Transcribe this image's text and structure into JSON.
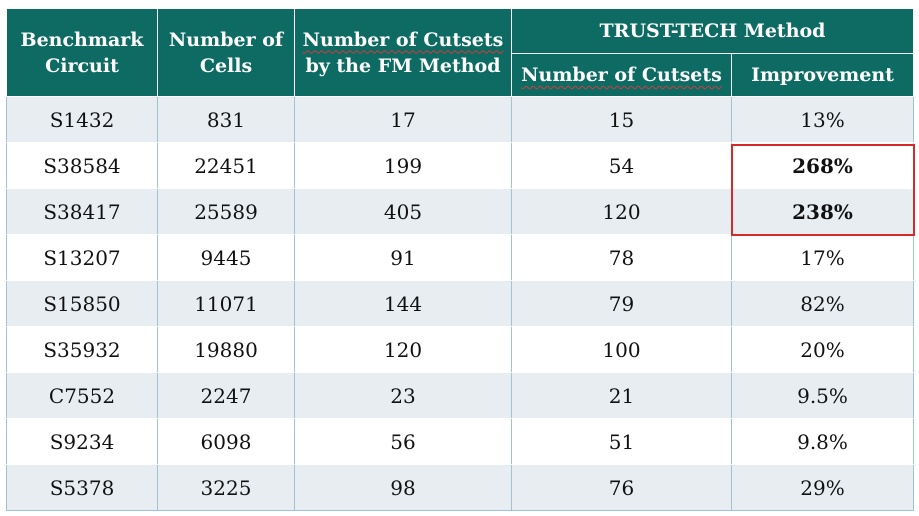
{
  "header": {
    "benchmark_circuit": "Benchmark Circuit",
    "number_of_cells": "Number of Cells",
    "cutsets_fm_line1": "Number of Cutsets",
    "cutsets_fm_line2": "by the FM Method",
    "trust_tech": "TRUST-TECH Method",
    "number_of_cutsets": "Number of Cutsets",
    "improvement": "Improvement"
  },
  "rows": [
    {
      "circuit": "S1432",
      "cells": "831",
      "fm": "17",
      "tt": "15",
      "improvement": "13%",
      "bold": false
    },
    {
      "circuit": "S38584",
      "cells": "22451",
      "fm": "199",
      "tt": "54",
      "improvement": "268%",
      "bold": true
    },
    {
      "circuit": "S38417",
      "cells": "25589",
      "fm": "405",
      "tt": "120",
      "improvement": "238%",
      "bold": true
    },
    {
      "circuit": "S13207",
      "cells": "9445",
      "fm": "91",
      "tt": "78",
      "improvement": "17%",
      "bold": false
    },
    {
      "circuit": "S15850",
      "cells": "11071",
      "fm": "144",
      "tt": "79",
      "improvement": "82%",
      "bold": false
    },
    {
      "circuit": "S35932",
      "cells": "19880",
      "fm": "120",
      "tt": "100",
      "improvement": "20%",
      "bold": false
    },
    {
      "circuit": "C7552",
      "cells": "2247",
      "fm": "23",
      "tt": "21",
      "improvement": "9.5%",
      "bold": false
    },
    {
      "circuit": "S9234",
      "cells": "6098",
      "fm": "56",
      "tt": "51",
      "improvement": "9.8%",
      "bold": false
    },
    {
      "circuit": "S5378",
      "cells": "3225",
      "fm": "98",
      "tt": "76",
      "improvement": "29%",
      "bold": false
    }
  ],
  "colors": {
    "header_bg": "#0d6b63",
    "row_alt_bg": "#e8edf1",
    "highlight": "#d62a2a"
  }
}
